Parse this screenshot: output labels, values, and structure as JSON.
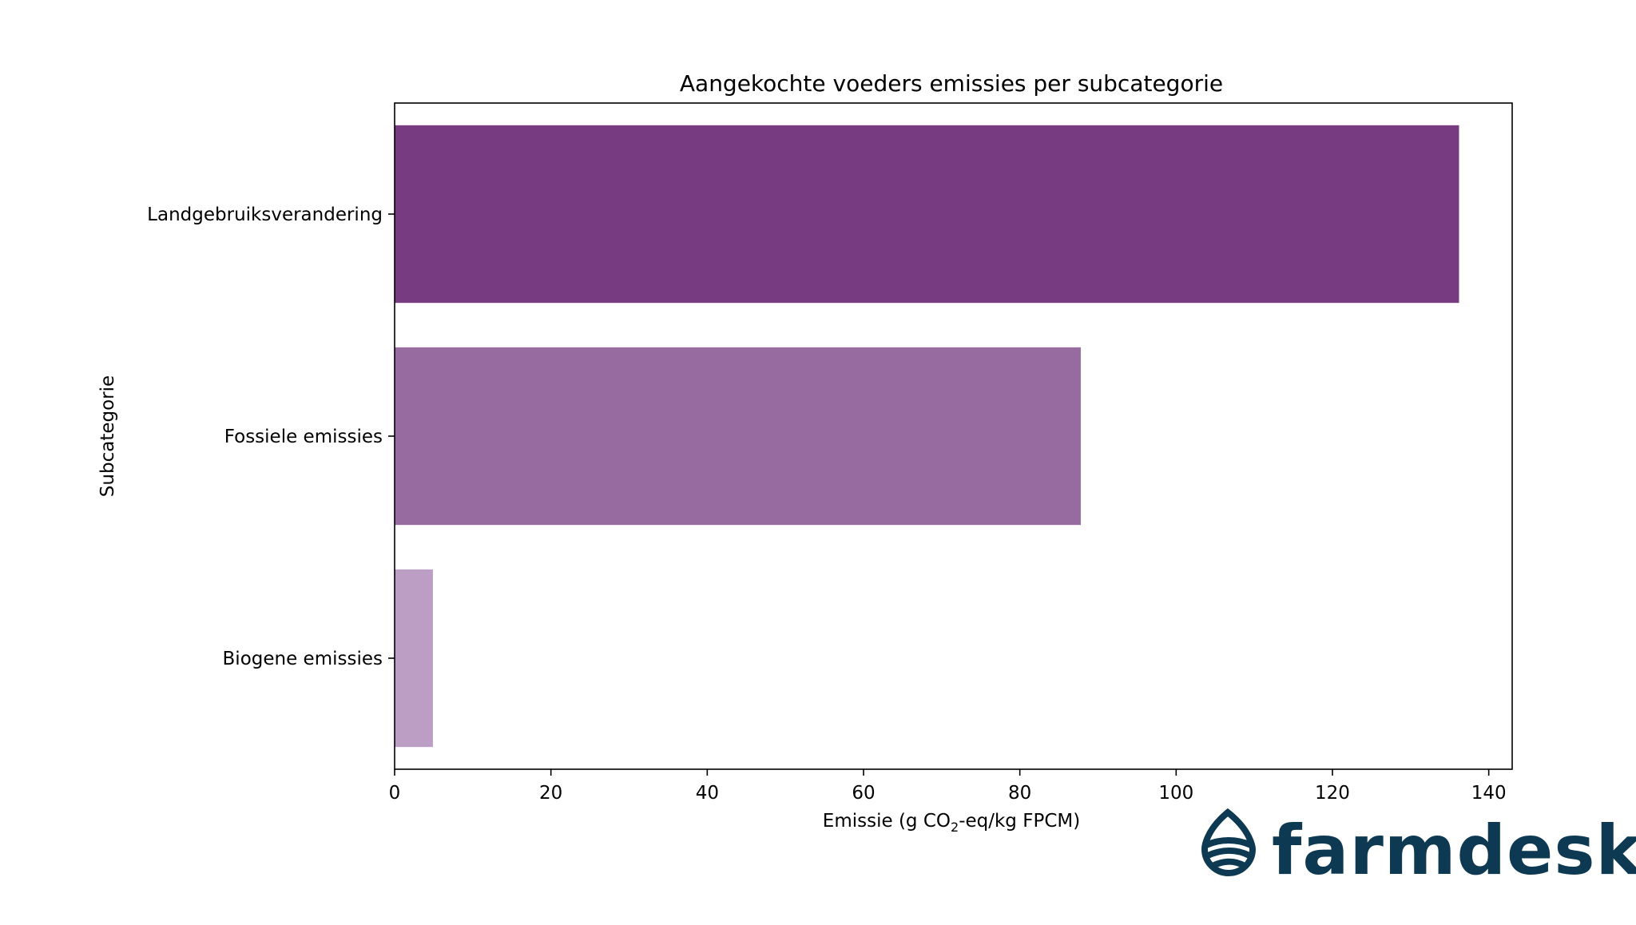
{
  "chart_data": {
    "type": "bar",
    "orientation": "horizontal",
    "title": "Aangekochte voeders emissies per subcategorie",
    "xlabel_parts": [
      "Emissie (g CO",
      "2",
      "-eq/kg FPCM)"
    ],
    "ylabel": "Subcategorie",
    "categories": [
      "Landgebruiksverandering",
      "Fossiele emissies",
      "Biogene emissies"
    ],
    "values": [
      136.2,
      87.8,
      4.9
    ],
    "colors": [
      "#773b82",
      "#986ba0",
      "#bc9ec5"
    ],
    "xlim": [
      0,
      143
    ],
    "xticks": [
      0,
      20,
      40,
      60,
      80,
      100,
      120,
      140
    ],
    "grid": false,
    "legend": "none"
  },
  "brand": {
    "name": "farmdesk",
    "color": "#0d3a52",
    "icon": "farmdesk-drop-logo-icon"
  }
}
